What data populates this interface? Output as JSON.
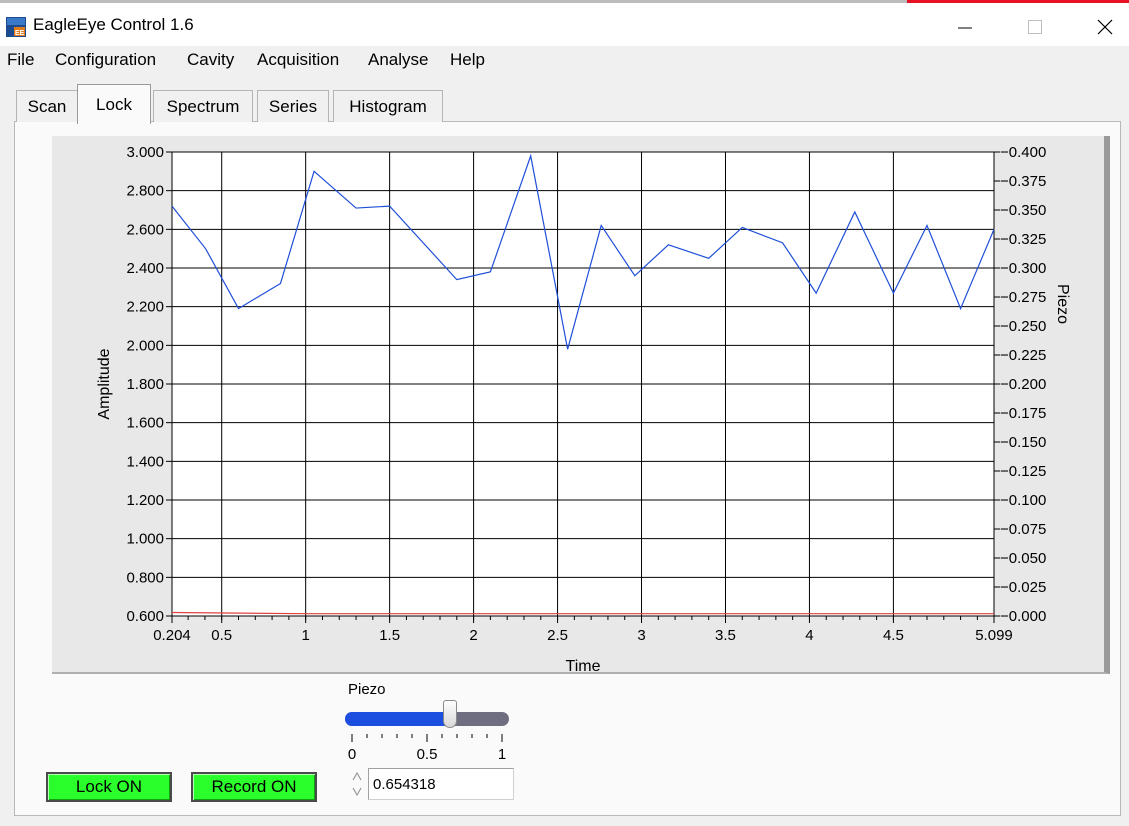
{
  "window": {
    "title": "EagleEye Control 1.6"
  },
  "menu": [
    "File",
    "Configuration",
    "Cavity",
    "Acquisition",
    "Analyse",
    "Help"
  ],
  "tabs": [
    "Scan",
    "Lock",
    "Spectrum",
    "Series",
    "Histogram"
  ],
  "active_tab": "Lock",
  "chart_data": {
    "type": "line",
    "xlabel": "Time",
    "ylabel": "Amplitude",
    "y2label": "Piezo",
    "xlim": [
      0.204,
      5.099
    ],
    "ylim": [
      0.6,
      3.0
    ],
    "y2lim": [
      0.0,
      0.4
    ],
    "x_ticks": [
      "0.204",
      "0.5",
      "1",
      "1.5",
      "2",
      "2.5",
      "3",
      "3.5",
      "4",
      "4.5",
      "5.099"
    ],
    "y_ticks": [
      "0.600",
      "0.800",
      "1.000",
      "1.200",
      "1.400",
      "1.600",
      "1.800",
      "2.000",
      "2.200",
      "2.400",
      "2.600",
      "2.800",
      "3.000"
    ],
    "y2_ticks": [
      "0.000",
      "0.025",
      "0.050",
      "0.075",
      "0.100",
      "0.125",
      "0.150",
      "0.175",
      "0.200",
      "0.225",
      "0.250",
      "0.275",
      "0.300",
      "0.325",
      "0.350",
      "0.375",
      "0.400"
    ],
    "grid": true,
    "series": [
      {
        "color": "#1f4fd8",
        "x": [
          0.204,
          0.404,
          0.6,
          0.85,
          1.05,
          1.3,
          1.5,
          1.9,
          2.1,
          2.34,
          2.56,
          2.76,
          2.96,
          3.16,
          3.4,
          3.6,
          3.84,
          4.04,
          4.27,
          4.5,
          4.7,
          4.9,
          5.099
        ],
        "y": [
          2.72,
          2.5,
          2.19,
          2.32,
          2.9,
          2.71,
          2.72,
          2.34,
          2.38,
          2.98,
          1.98,
          2.62,
          2.36,
          2.52,
          2.45,
          2.61,
          2.53,
          2.27,
          2.69,
          2.27,
          2.62,
          2.19,
          2.6
        ]
      },
      {
        "color": "#e04040",
        "axis": "right",
        "x": [
          0.204,
          1.0,
          5.099
        ],
        "y": [
          0.003,
          0.002,
          0.002
        ]
      }
    ]
  },
  "piezo_control": {
    "label": "Piezo",
    "value": 0.654318,
    "value_text": "0.654318",
    "ticks": [
      "0",
      "0.5",
      "1"
    ]
  },
  "buttons": {
    "lock": "Lock ON",
    "record": "Record ON"
  },
  "colors": {
    "button_green": "#2bff2b",
    "slider_fill": "#1c4fe0",
    "trace_blue": "#1f4fd8",
    "trace_red": "#e04040"
  }
}
